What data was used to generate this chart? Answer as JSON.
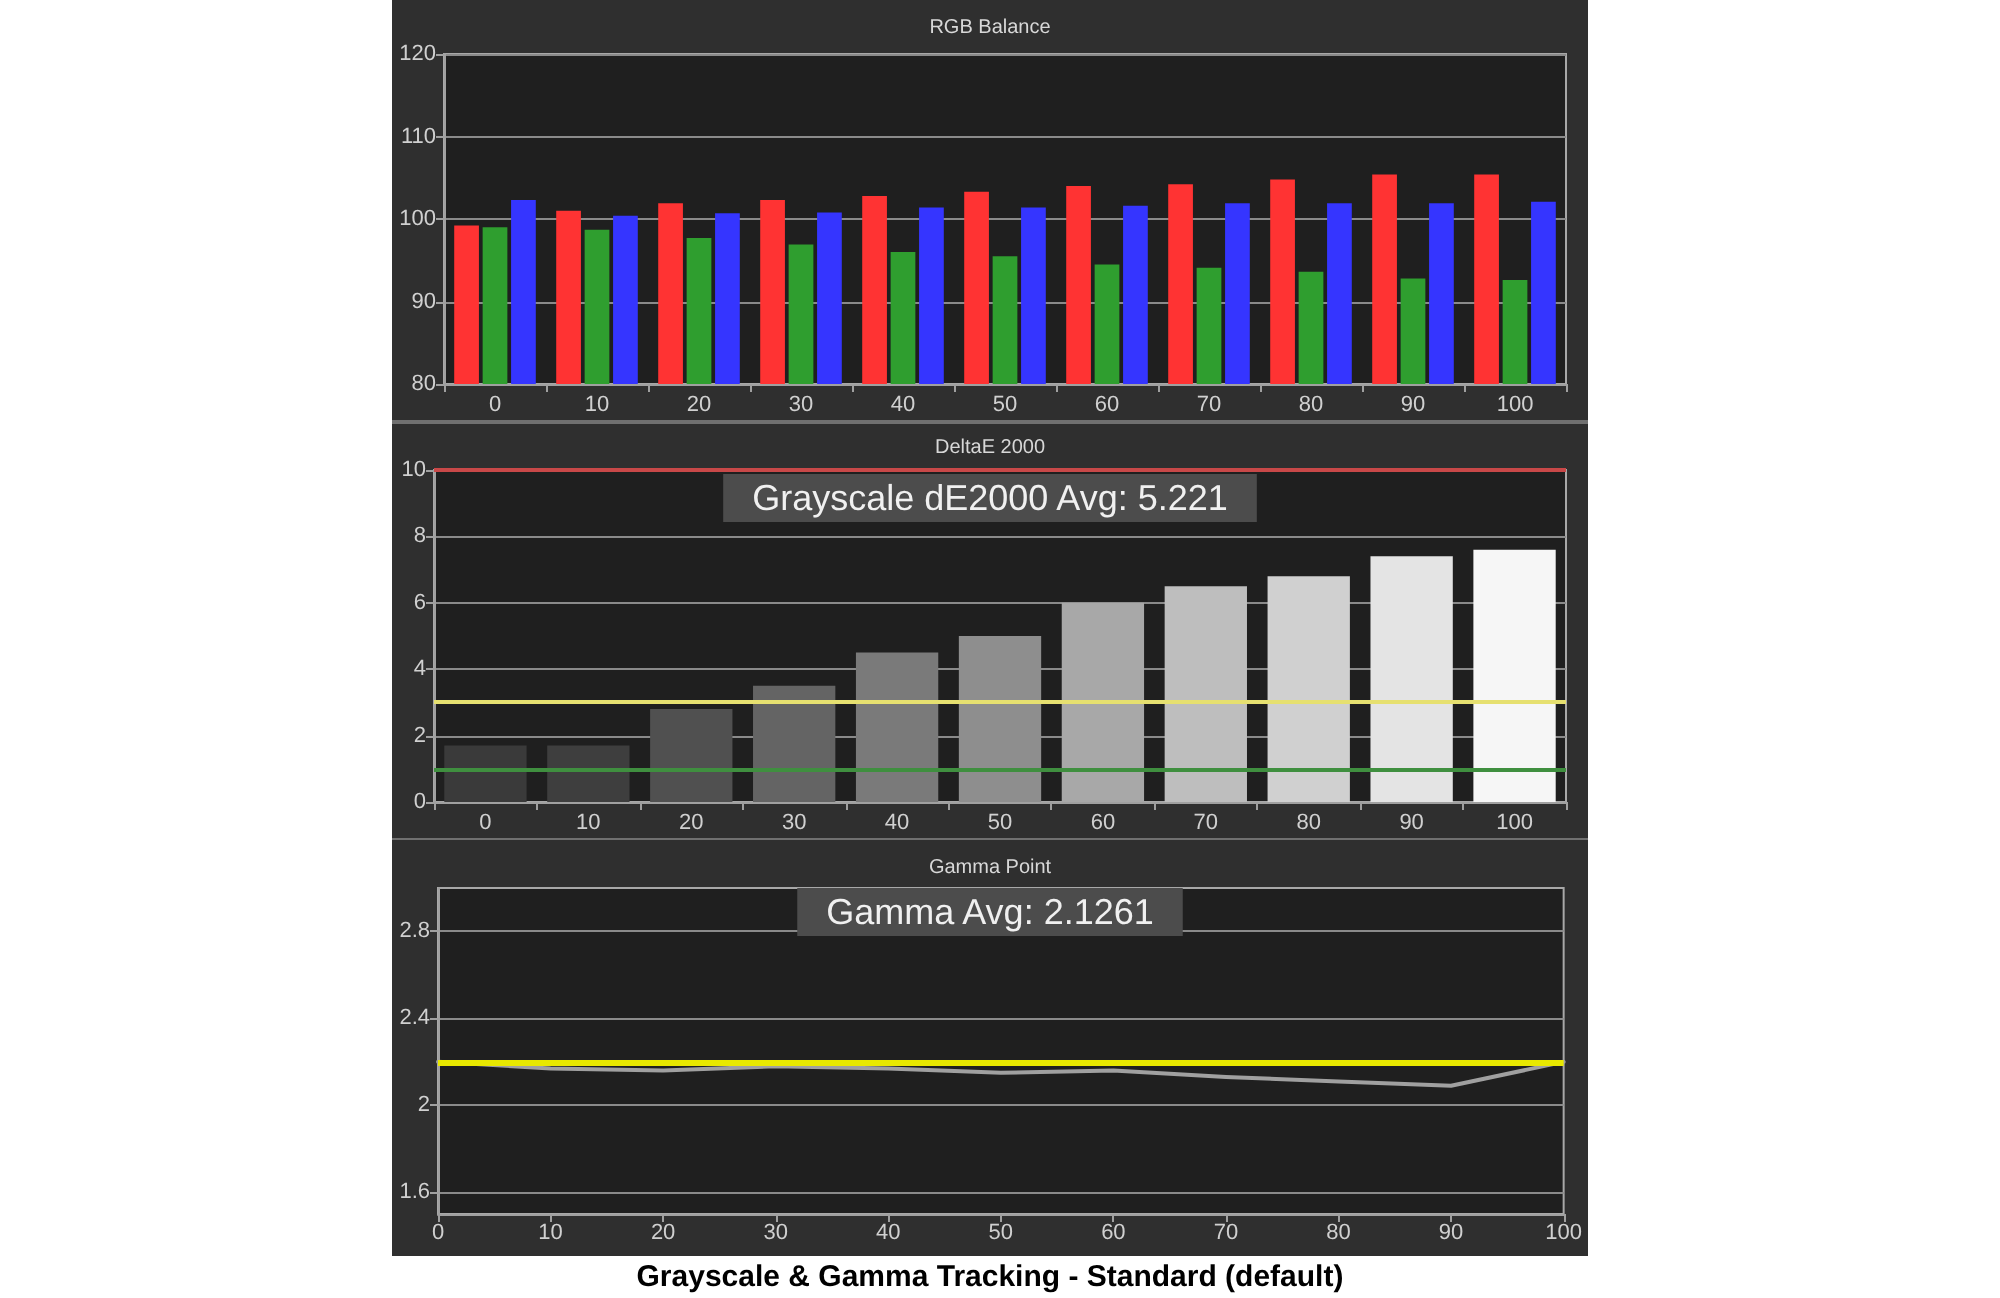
{
  "chart_data": [
    {
      "type": "bar",
      "title": "RGB Balance",
      "categories": [
        "0",
        "10",
        "20",
        "30",
        "40",
        "50",
        "60",
        "70",
        "80",
        "90",
        "100"
      ],
      "series": [
        {
          "color": "#ff3333",
          "values": [
            99.2,
            101,
            101.9,
            102.3,
            102.8,
            103.3,
            104,
            104.2,
            104.8,
            105.4,
            105.4
          ]
        },
        {
          "color": "#2f9e2f",
          "values": [
            99,
            98.7,
            97.7,
            96.9,
            96,
            95.5,
            94.5,
            94.1,
            93.6,
            92.8,
            92.6
          ]
        },
        {
          "color": "#3535ff",
          "values": [
            102.3,
            100.4,
            100.7,
            100.8,
            101.4,
            101.4,
            101.6,
            101.9,
            101.9,
            101.9,
            102.1
          ]
        }
      ],
      "ylim": [
        80,
        120
      ],
      "yticks": [
        80,
        90,
        100,
        110,
        120
      ],
      "grid": "y"
    },
    {
      "type": "bar",
      "title": "DeltaE 2000",
      "categories": [
        "0",
        "10",
        "20",
        "30",
        "40",
        "50",
        "60",
        "70",
        "80",
        "90",
        "100"
      ],
      "values": [
        1.7,
        1.7,
        2.8,
        3.5,
        4.5,
        5,
        6,
        6.5,
        6.8,
        7.4,
        7.6
      ],
      "colors": [
        "#3a3a3a",
        "#3e3e3e",
        "#505050",
        "#646464",
        "#7a7a7a",
        "#8e8e8e",
        "#a8a8a8",
        "#bebebe",
        "#d0d0d0",
        "#e4e4e4",
        "#f6f6f6"
      ],
      "ylim": [
        0,
        10
      ],
      "yticks": [
        0,
        2,
        4,
        6,
        8,
        10
      ],
      "grid": "y",
      "ref_lines": [
        {
          "axis": "y",
          "value": 10,
          "color": "#c84848"
        },
        {
          "axis": "y",
          "value": 3,
          "color": "#e6e070"
        },
        {
          "axis": "y",
          "value": 1,
          "color": "#3f8f3f"
        }
      ],
      "annotations": [
        "Grayscale dE2000 Avg: 5.221"
      ]
    },
    {
      "type": "line",
      "title": "Gamma Point",
      "x": [
        0,
        10,
        20,
        30,
        40,
        50,
        60,
        70,
        80,
        90,
        100
      ],
      "series": [
        {
          "color": "#a0a0a0",
          "values": [
            2.2,
            2.17,
            2.16,
            2.18,
            2.17,
            2.15,
            2.16,
            2.13,
            2.11,
            2.09,
            2.2
          ]
        }
      ],
      "xlim": [
        0,
        100
      ],
      "xticks": [
        0,
        10,
        20,
        30,
        40,
        50,
        60,
        70,
        80,
        90,
        100
      ],
      "ylim": [
        1.5,
        3.0
      ],
      "yticks": [
        1.6,
        2,
        2.4,
        2.8
      ],
      "grid": "y",
      "marker": "none",
      "ref_lines": [
        {
          "axis": "y",
          "value": 2.2,
          "color": "#e8e800"
        }
      ],
      "annotations": [
        "Gamma Avg: 2.1261",
        "Grayscale & Gamma Tracking - Standard (default)"
      ]
    }
  ]
}
